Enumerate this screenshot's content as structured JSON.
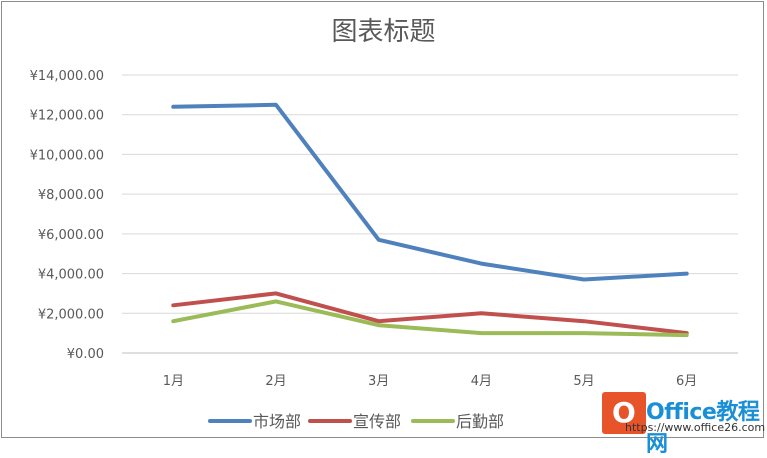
{
  "chart_data": {
    "type": "line",
    "title": "图表标题",
    "xlabel": "",
    "ylabel": "",
    "categories": [
      "1月",
      "2月",
      "3月",
      "4月",
      "5月",
      "6月"
    ],
    "y_ticks": [
      "¥0.00",
      "¥2,000.00",
      "¥4,000.00",
      "¥6,000.00",
      "¥8,000.00",
      "¥10,000.00",
      "¥12,000.00",
      "¥14,000.00"
    ],
    "ylim": [
      0,
      14000
    ],
    "grid": "horizontal",
    "legend_position": "bottom",
    "series": [
      {
        "name": "市场部",
        "color": "#4f81bd",
        "values": [
          12400,
          12500,
          5700,
          4500,
          3700,
          4000
        ]
      },
      {
        "name": "宣传部",
        "color": "#c0504d",
        "values": [
          2400,
          3000,
          1600,
          2000,
          1600,
          1000
        ]
      },
      {
        "name": "后勤部",
        "color": "#9bbb59",
        "values": [
          1600,
          2600,
          1400,
          1000,
          1000,
          900
        ]
      }
    ]
  },
  "watermark": {
    "brand": "Office教程网",
    "url": "https://www.office26.com"
  }
}
